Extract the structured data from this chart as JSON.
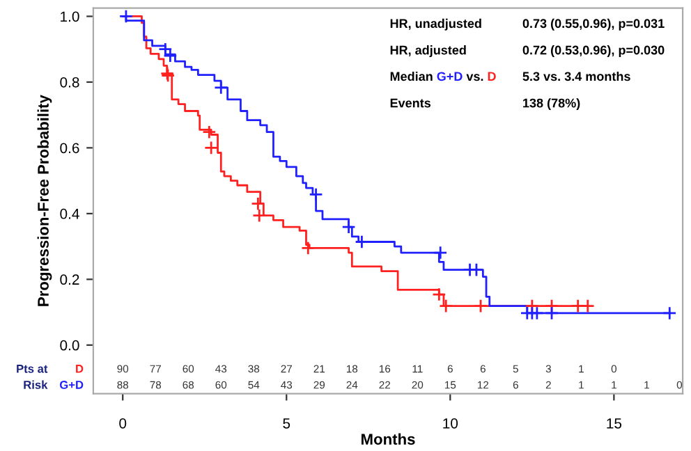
{
  "chart_data": {
    "type": "step",
    "ylabel": "Progression-Free Probability",
    "xlabel": "Months",
    "xlim": [
      -0.9,
      17.1
    ],
    "xticks": [
      0,
      5,
      10,
      15
    ],
    "ylim": [
      -0.148,
      1.025
    ],
    "yticks": [
      {
        "value": 0,
        "label": "0.0"
      },
      {
        "value": 0.2,
        "label": "0.2"
      },
      {
        "value": 0.4,
        "label": "0.4"
      },
      {
        "value": 0.6,
        "label": "0.6"
      },
      {
        "value": 0.8,
        "label": "0.8"
      },
      {
        "value": 1,
        "label": "1.0"
      }
    ],
    "grid": false,
    "legend": false,
    "line_style": "solid",
    "series": [
      {
        "name": "D",
        "color": "#ff2020",
        "type": "step",
        "x": [
          0,
          0.58,
          0.65,
          0.72,
          0.85,
          1.1,
          1.25,
          1.35,
          1.5,
          1.7,
          1.9,
          2.3,
          2.35,
          2.7,
          2.9,
          3.0,
          3.1,
          3.3,
          3.5,
          3.8,
          4.2,
          4.3,
          4.6,
          4.9,
          5.4,
          5.6,
          5.7,
          6.9,
          7.0,
          7.9,
          8.4,
          9.66,
          9.8,
          14.2
        ],
        "values": [
          1.0,
          0.98,
          0.938,
          0.903,
          0.886,
          0.87,
          0.85,
          0.826,
          0.747,
          0.733,
          0.712,
          0.698,
          0.655,
          0.64,
          0.585,
          0.528,
          0.514,
          0.5,
          0.486,
          0.466,
          0.43,
          0.394,
          0.38,
          0.359,
          0.348,
          0.305,
          0.295,
          0.281,
          0.239,
          0.225,
          0.168,
          0.154,
          0.119,
          0.119
        ]
      },
      {
        "name": "G+D",
        "color": "#2020ff",
        "type": "step",
        "x": [
          0,
          0.1,
          0.65,
          0.9,
          1.3,
          1.6,
          1.9,
          2.1,
          2.3,
          2.8,
          3.0,
          3.2,
          3.6,
          3.8,
          4.2,
          4.4,
          4.6,
          4.8,
          5.0,
          5.3,
          5.5,
          5.6,
          5.8,
          5.9,
          6.1,
          6.9,
          7.0,
          7.2,
          8.3,
          8.5,
          9.66,
          9.8,
          11.0,
          11.1,
          11.2,
          12.35,
          16.7
        ],
        "values": [
          1.0,
          0.987,
          0.927,
          0.91,
          0.884,
          0.863,
          0.846,
          0.837,
          0.822,
          0.804,
          0.783,
          0.747,
          0.712,
          0.684,
          0.669,
          0.648,
          0.573,
          0.56,
          0.542,
          0.514,
          0.493,
          0.478,
          0.458,
          0.408,
          0.383,
          0.359,
          0.33,
          0.314,
          0.3,
          0.281,
          0.253,
          0.229,
          0.208,
          0.147,
          0.119,
          0.097,
          0.097
        ]
      },
      {
        "color": "#ff2020",
        "type": "scatter",
        "marker": "cross",
        "x": [
          1.36,
          1.38,
          2.64,
          2.7,
          4.13,
          4.17,
          5.66,
          9.66,
          9.87,
          10.93,
          12.5,
          13.1,
          13.9,
          14.2
        ],
        "values": [
          0.826,
          0.82,
          0.648,
          0.6,
          0.43,
          0.394,
          0.295,
          0.154,
          0.119,
          0.119,
          0.119,
          0.119,
          0.119,
          0.119
        ]
      },
      {
        "color": "#2020ff",
        "type": "scatter",
        "marker": "cross",
        "x": [
          0.1,
          1.3,
          1.45,
          3.0,
          5.9,
          6.9,
          7.3,
          9.7,
          10.6,
          10.8,
          12.35,
          12.5,
          12.65,
          13.1,
          16.7
        ],
        "values": [
          1.0,
          0.9,
          0.88,
          0.783,
          0.458,
          0.359,
          0.314,
          0.281,
          0.229,
          0.229,
          0.097,
          0.097,
          0.097,
          0.097,
          0.097
        ]
      }
    ],
    "annotations": [
      "HR, unadjusted",
      "0.73 (0.55,0.96), p=0.031",
      "HR, adjusted",
      "0.72 (0.53,0.96), p=0.030",
      "Median",
      "vs.",
      "5.3 vs. 3.4 months",
      "Events",
      "138 (78%)",
      "Pts at",
      "Risk",
      "90",
      "77",
      "60",
      "43",
      "38",
      "27",
      "21",
      "18",
      "16",
      "11",
      "6",
      "6",
      "5",
      "3",
      "1",
      "0",
      "88",
      "78",
      "68",
      "60",
      "54",
      "43",
      "29",
      "24",
      "22",
      "20",
      "15",
      "12",
      "6",
      "2",
      "1",
      "1",
      "1",
      "0"
    ]
  }
}
